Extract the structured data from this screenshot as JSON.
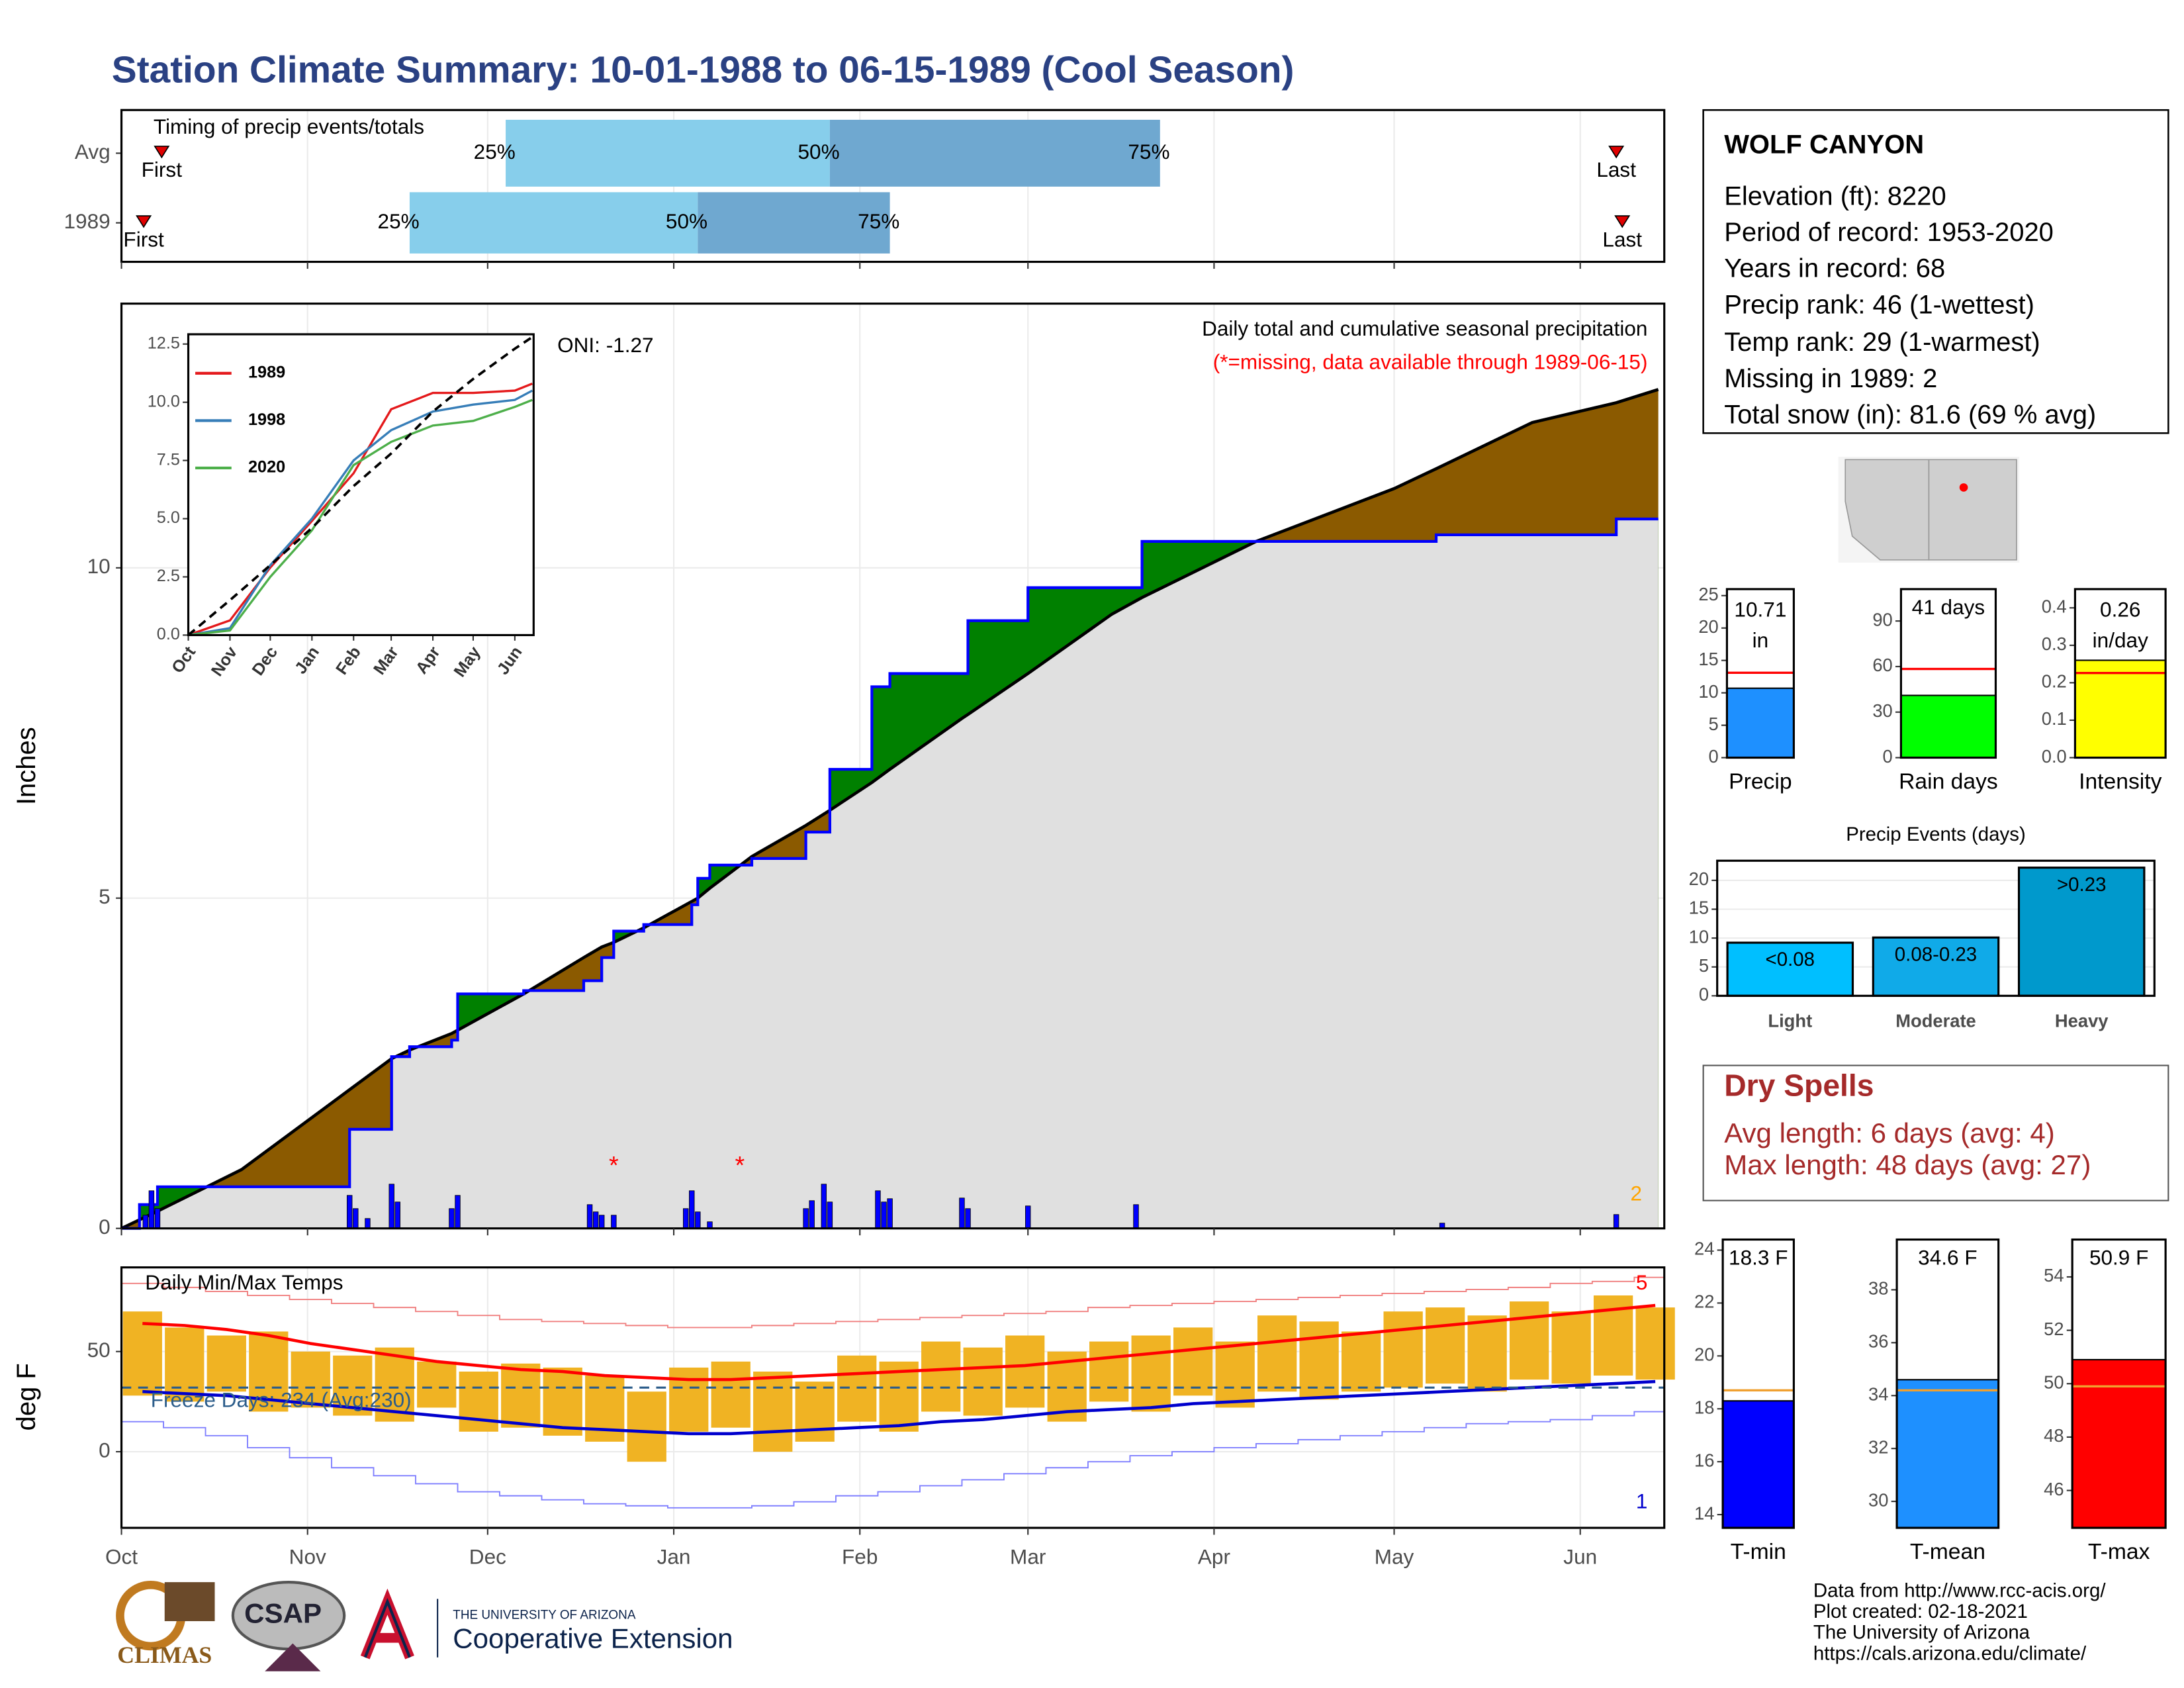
{
  "title": "Station Climate Summary: 10-01-1988 to 06-15-1989 (Cool Season)",
  "station": {
    "name": "WOLF CANYON",
    "lines": [
      "Elevation (ft): 8220",
      "Period of record: 1953-2020",
      "Years in record: 68",
      "Precip rank: 46 (1-wettest)",
      "Temp rank: 29 (1-warmest)",
      "Missing in 1989: 2",
      "Total snow (in): 81.6 (69 % avg)"
    ]
  },
  "dry_spells": {
    "title": "Dry Spells",
    "lines": [
      "Avg length: 6 days (avg: 4)",
      "Max length: 48 days (avg: 27)"
    ]
  },
  "footer": {
    "logos": [
      "CLIMAS",
      "CSAP"
    ],
    "university": "THE UNIVERSITY OF ARIZONA",
    "extension": "Cooperative Extension",
    "credits": [
      "Data from http://www.rcc-acis.org/",
      "Plot created: 02-18-2021",
      "The University of Arizona",
      "https://cals.arizona.edu/climate/"
    ]
  },
  "chart_data": [
    {
      "type": "timing",
      "title": "Timing of precip events/totals",
      "xlim": [
        0,
        257
      ],
      "pct_labels": [
        "25%",
        "50%",
        "75%"
      ],
      "first_label": "First",
      "last_label": "Last",
      "colors": [
        "#87ceeb",
        "#6fa8d0"
      ],
      "rows": [
        {
          "name": "Avg",
          "first": 6.7,
          "p25": 64,
          "p50": 118,
          "p75": 173,
          "last": 249
        },
        {
          "name": "1989",
          "first": 3.7,
          "p25": 48,
          "p50": 96,
          "p75": 128,
          "last": 250
        }
      ]
    },
    {
      "type": "area",
      "title": "Daily total and cumulative seasonal precipitation",
      "subtitle": "(*=missing, data available through 1989-06-15)",
      "annotation": "ONI: -1.27",
      "ylabel": "Inches",
      "x": [
        0,
        3,
        6,
        20,
        38,
        45,
        48,
        55,
        56,
        67,
        77,
        80,
        82,
        87,
        95,
        96,
        98,
        105,
        114,
        118,
        125,
        128,
        140,
        141,
        151,
        165,
        169,
        170,
        189,
        212,
        219,
        235,
        249,
        256
      ],
      "series": [
        {
          "color": "#000000",
          "values": [
            0,
            0.13,
            0.26,
            0.89,
            2.1,
            2.57,
            2.7,
            2.95,
            3.0,
            3.55,
            4.1,
            4.26,
            4.33,
            4.55,
            4.95,
            5.0,
            5.15,
            5.63,
            6.1,
            6.33,
            6.75,
            6.95,
            7.72,
            7.78,
            8.4,
            9.3,
            9.5,
            9.55,
            10.4,
            11.2,
            11.5,
            12.2,
            12.5,
            12.7
          ]
        },
        {
          "color": "#0000ff",
          "values": [
            0,
            0.36,
            0.63,
            0.63,
            1.5,
            2.6,
            2.75,
            2.85,
            3.55,
            3.6,
            3.75,
            4.1,
            4.5,
            4.6,
            4.9,
            5.3,
            5.5,
            5.6,
            6.0,
            6.95,
            8.2,
            8.4,
            8.4,
            9.2,
            9.7,
            9.7,
            9.7,
            10.4,
            10.4,
            10.4,
            10.5,
            10.5,
            10.74,
            10.74
          ]
        }
      ],
      "above_color": "#008000",
      "below_color": "#8b5a00",
      "base_color": "#e0e0e0",
      "daily": {
        "color": "#0000ff",
        "x": [
          4,
          5,
          6,
          38,
          39,
          41,
          45,
          46,
          55,
          56,
          78,
          79,
          80,
          82,
          94,
          95,
          96,
          98,
          114,
          115,
          117,
          118,
          126,
          127,
          128,
          140,
          141,
          151,
          169,
          220,
          249
        ],
        "values": [
          0.2,
          0.57,
          0.3,
          0.5,
          0.3,
          0.15,
          0.67,
          0.4,
          0.3,
          0.5,
          0.36,
          0.25,
          0.2,
          0.2,
          0.3,
          0.57,
          0.25,
          0.1,
          0.3,
          0.42,
          0.67,
          0.4,
          0.57,
          0.4,
          0.45,
          0.46,
          0.3,
          0.34,
          0.36,
          0.08,
          0.21
        ]
      },
      "missing_x": [
        82,
        103
      ],
      "missing_label": "*",
      "corner_note": "2",
      "xlim": [
        0,
        257
      ],
      "ylim": [
        0,
        14
      ],
      "yticks": [
        0,
        5,
        10
      ],
      "grid": true
    },
    {
      "type": "line",
      "x": [
        0,
        31,
        61,
        92,
        123,
        151,
        182,
        212,
        243,
        256
      ],
      "series": [
        {
          "name": "1989",
          "color": "#e41a1c",
          "values": [
            0,
            0.63,
            2.9,
            4.9,
            6.95,
            9.7,
            10.4,
            10.4,
            10.5,
            10.8
          ]
        },
        {
          "name": "1998",
          "color": "#377eb8",
          "values": [
            0,
            0.3,
            3.0,
            5.0,
            7.5,
            8.8,
            9.6,
            9.9,
            10.1,
            10.5
          ]
        },
        {
          "name": "2020",
          "color": "#4daf4a",
          "values": [
            0,
            0.2,
            2.5,
            4.5,
            7.3,
            8.3,
            9.0,
            9.2,
            9.8,
            10.1
          ]
        },
        {
          "color": "#000000",
          "dash": true,
          "values": [
            0,
            1.5,
            3.0,
            4.6,
            6.4,
            7.8,
            9.6,
            11.0,
            12.3,
            12.8
          ]
        }
      ],
      "xlim": [
        0,
        257
      ],
      "ylim": [
        0,
        12.92
      ],
      "yticks": [
        {
          "value": 0,
          "label": "0.0"
        },
        2.5,
        {
          "value": 5,
          "label": "5.0"
        },
        7.5,
        {
          "value": 10,
          "label": "10.0"
        },
        12.5
      ],
      "xticks": [
        {
          "value": 0,
          "label": "Oct"
        },
        {
          "value": 31,
          "label": "Nov"
        },
        {
          "value": 61,
          "label": "Dec"
        },
        {
          "value": 92,
          "label": "Jan"
        },
        {
          "value": 123,
          "label": "Feb"
        },
        {
          "value": 151,
          "label": "Mar"
        },
        {
          "value": 182,
          "label": "Apr"
        },
        {
          "value": 212,
          "label": "May"
        },
        {
          "value": 243,
          "label": "Jun"
        }
      ]
    },
    {
      "type": "temp",
      "title": "Daily Min/Max Temps",
      "annotation": "Freeze Days: 234 (Avg:230)",
      "ylabel": "deg F",
      "freeze_line": 32,
      "x": [
        0,
        7,
        14,
        21,
        28,
        35,
        42,
        49,
        56,
        63,
        70,
        77,
        84,
        91,
        98,
        105,
        112,
        119,
        126,
        133,
        140,
        147,
        154,
        161,
        168,
        175,
        182,
        189,
        196,
        203,
        210,
        217,
        224,
        231,
        238,
        245,
        252
      ],
      "tmax": [
        70,
        62,
        58,
        60,
        50,
        48,
        52,
        45,
        40,
        44,
        42,
        38,
        30,
        42,
        45,
        40,
        35,
        48,
        45,
        55,
        52,
        58,
        50,
        55,
        58,
        62,
        55,
        68,
        65,
        60,
        70,
        72,
        68,
        75,
        70,
        78,
        72
      ],
      "tmin": [
        28,
        25,
        30,
        20,
        22,
        18,
        15,
        22,
        10,
        12,
        8,
        5,
        -5,
        10,
        12,
        0,
        5,
        15,
        10,
        20,
        18,
        22,
        15,
        25,
        20,
        28,
        22,
        30,
        26,
        30,
        32,
        34,
        30,
        36,
        34,
        38,
        36
      ],
      "avg_max": [
        64,
        63,
        61,
        58,
        54,
        51,
        48,
        45,
        43,
        41,
        40,
        38,
        37,
        36,
        36,
        37,
        38,
        39,
        40,
        41,
        42,
        43,
        45,
        47,
        49,
        51,
        53,
        55,
        57,
        59,
        61,
        63,
        65,
        67,
        69,
        71,
        73
      ],
      "avg_min": [
        30,
        29,
        28,
        26,
        24,
        22,
        20,
        18,
        16,
        14,
        12,
        11,
        10,
        9,
        9,
        10,
        11,
        12,
        13,
        15,
        16,
        18,
        20,
        21,
        22,
        24,
        25,
        26,
        27,
        28,
        29,
        30,
        31,
        32,
        33,
        34,
        35
      ],
      "record_max": [
        84,
        82,
        80,
        78,
        76,
        74,
        72,
        70,
        68,
        66,
        65,
        64,
        63,
        62,
        62,
        63,
        64,
        65,
        66,
        67,
        68,
        69,
        70,
        72,
        73,
        74,
        75,
        76,
        77,
        78,
        79,
        80,
        81,
        82,
        84,
        85,
        87
      ],
      "record_min": [
        15,
        12,
        8,
        2,
        -3,
        -8,
        -12,
        -16,
        -20,
        -22,
        -24,
        -26,
        -27,
        -28,
        -28,
        -27,
        -25,
        -22,
        -20,
        -17,
        -14,
        -11,
        -8,
        -5,
        -2,
        0,
        2,
        4,
        6,
        8,
        10,
        12,
        14,
        15,
        16,
        18,
        20
      ],
      "bar_color": "#f0b323",
      "max_color": "#ff0000",
      "min_color": "#0000cd",
      "record_max_color": "#f08080",
      "record_min_color": "#8080ff",
      "freeze_color": "#2b5c8a",
      "notes": [
        {
          "text": "5",
          "color": "#ff0000"
        },
        {
          "text": "1",
          "color": "#0000cd"
        }
      ],
      "xlim": [
        0,
        257
      ],
      "ylim": [
        -38,
        92
      ],
      "yticks": [
        0,
        50
      ],
      "xticks": [
        {
          "value": 0,
          "label": "Oct"
        },
        {
          "value": 31,
          "label": "Nov"
        },
        {
          "value": 61,
          "label": "Dec"
        },
        {
          "value": 92,
          "label": "Jan"
        },
        {
          "value": 123,
          "label": "Feb"
        },
        {
          "value": 151,
          "label": "Mar"
        },
        {
          "value": 182,
          "label": "Apr"
        },
        {
          "value": 212,
          "label": "May"
        },
        {
          "value": 243,
          "label": "Jun"
        }
      ]
    },
    {
      "type": "bar",
      "categories": [
        "Precip"
      ],
      "values": [
        10.71
      ],
      "value_labels": [
        "10.71 in"
      ],
      "average": 13.1,
      "average_color": "#ff0000",
      "color": "#1e90ff",
      "ylim": [
        0,
        26
      ],
      "yticks": [
        0,
        5,
        10,
        15,
        20,
        25
      ]
    },
    {
      "type": "bar",
      "categories": [
        "Rain days"
      ],
      "values": [
        41
      ],
      "value_labels": [
        "41 days"
      ],
      "average": 58.4,
      "average_color": "#ff0000",
      "color": "#00ff00",
      "ylim": [
        0,
        111
      ],
      "yticks": [
        0,
        30,
        60,
        90
      ]
    },
    {
      "type": "bar",
      "categories": [
        "Intensity"
      ],
      "values": [
        0.26
      ],
      "value_labels": [
        "0.26 in/day"
      ],
      "average": 0.226,
      "average_color": "#ff0000",
      "color": "#ffff00",
      "ylim": [
        0,
        0.45
      ],
      "yticks": [
        {
          "value": 0,
          "label": "0.0"
        },
        0.1,
        0.2,
        0.3,
        0.4
      ]
    },
    {
      "type": "bar",
      "title": "Precip Events (days)",
      "categories": [
        "Light",
        "Moderate",
        "Heavy"
      ],
      "values": [
        9.2,
        10.1,
        22.2
      ],
      "bin_labels": [
        "<0.08",
        "0.08-0.23",
        ">0.23"
      ],
      "colors": [
        "#00bfff",
        "#10aae8",
        "#0099cc"
      ],
      "ylim": [
        0,
        23.4
      ],
      "yticks": [
        0,
        5,
        10,
        15,
        20
      ]
    },
    {
      "type": "bar",
      "categories": [
        "T-min"
      ],
      "values": [
        18.3
      ],
      "value_labels": [
        "18.3 F"
      ],
      "average": 18.7,
      "average_color": "#f0a030",
      "color": "#0000ff",
      "ylim": [
        13.5,
        24.4
      ],
      "yticks": [
        14,
        16,
        18,
        20,
        22,
        24
      ]
    },
    {
      "type": "bar",
      "categories": [
        "T-mean"
      ],
      "values": [
        34.6
      ],
      "value_labels": [
        "34.6 F"
      ],
      "average": 34.2,
      "average_color": "#f0a030",
      "color": "#1e90ff",
      "ylim": [
        29,
        39.9
      ],
      "yticks": [
        30,
        32,
        34,
        36,
        38
      ]
    },
    {
      "type": "bar",
      "categories": [
        "T-max"
      ],
      "values": [
        50.9
      ],
      "value_labels": [
        "50.9 F"
      ],
      "average": 49.9,
      "average_color": "#f0a030",
      "color": "#ff0000",
      "ylim": [
        44.6,
        55.4
      ],
      "yticks": [
        46,
        48,
        50,
        52,
        54
      ]
    }
  ]
}
